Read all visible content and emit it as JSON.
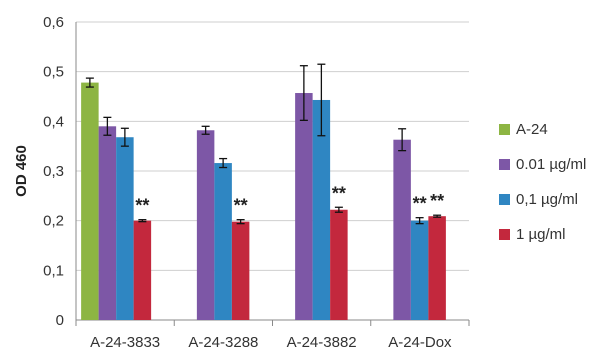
{
  "chart_data": {
    "type": "bar",
    "ylabel": "OD 460",
    "ylim": [
      0,
      0.6
    ],
    "yticks": [
      "0",
      "0,1",
      "0,2",
      "0,3",
      "0,4",
      "0,5",
      "0,6"
    ],
    "categories": [
      "A-24-3833",
      "A-24-3288",
      "A-24-3882",
      "A-24-Dox"
    ],
    "grid": true,
    "legend_position": "right",
    "series": [
      {
        "name": "A-24",
        "color": "#8db543",
        "values": [
          0.478,
          null,
          null,
          null
        ],
        "errors": [
          0.009,
          null,
          null,
          null
        ],
        "marks": [
          "",
          "",
          "",
          ""
        ]
      },
      {
        "name": "0.01 µg/ml",
        "color": "#7d57a6",
        "values": [
          0.39,
          0.382,
          0.457,
          0.363
        ],
        "errors": [
          0.018,
          0.008,
          0.055,
          0.022
        ],
        "marks": [
          "",
          "",
          "",
          ""
        ]
      },
      {
        "name": "0,1 µg/ml",
        "color": "#2f86c2",
        "values": [
          0.368,
          0.316,
          0.443,
          0.2
        ],
        "errors": [
          0.018,
          0.009,
          0.072,
          0.006
        ],
        "marks": [
          "",
          "",
          "",
          "**"
        ]
      },
      {
        "name": "1 µg/ml",
        "color": "#c3283d",
        "values": [
          0.2,
          0.198,
          0.222,
          0.209
        ],
        "errors": [
          0.002,
          0.004,
          0.005,
          0.002
        ],
        "marks": [
          "**",
          "**",
          "**",
          "**"
        ]
      }
    ]
  }
}
